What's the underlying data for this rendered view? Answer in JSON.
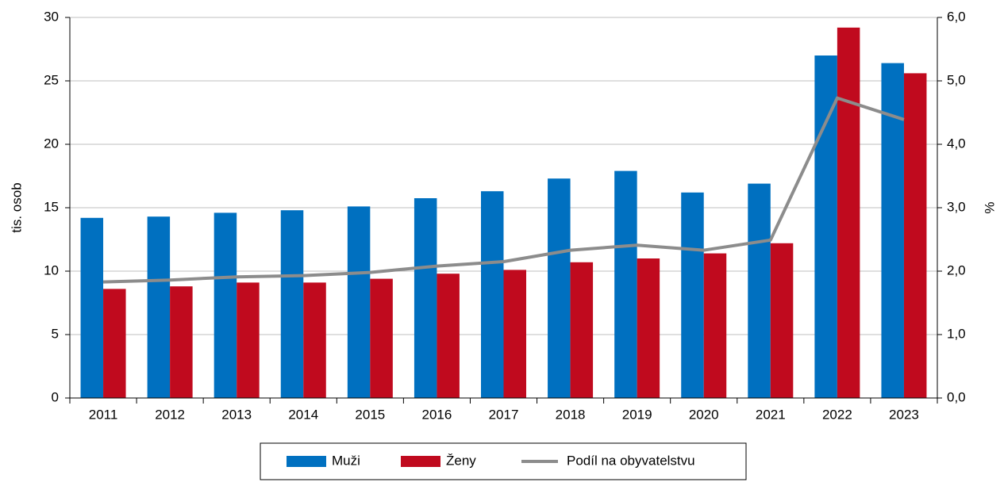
{
  "chart_data": {
    "type": "bar",
    "y_label": "tis. osob",
    "y2_label": "%",
    "categories": [
      "2011",
      "2012",
      "2013",
      "2014",
      "2015",
      "2016",
      "2017",
      "2018",
      "2019",
      "2020",
      "2021",
      "2022",
      "2023"
    ],
    "series": [
      {
        "name": "Muži",
        "color": "#0070c0",
        "values": [
          14.2,
          14.3,
          14.6,
          14.8,
          15.1,
          15.75,
          16.3,
          17.3,
          17.9,
          16.2,
          16.9,
          27.0,
          26.4
        ]
      },
      {
        "name": "Ženy",
        "color": "#c00a1e",
        "values": [
          8.6,
          8.8,
          9.1,
          9.1,
          9.4,
          9.8,
          10.1,
          10.7,
          11.0,
          11.4,
          12.2,
          29.2,
          25.6
        ]
      },
      {
        "name": "Podíl na obyvatelstvu",
        "color": "#8c8c8c",
        "type": "line",
        "axis": "y2",
        "values": [
          1.83,
          1.86,
          1.91,
          1.93,
          1.98,
          2.08,
          2.15,
          2.33,
          2.41,
          2.33,
          2.49,
          4.73,
          4.39
        ]
      }
    ],
    "ylim": [
      0,
      30
    ],
    "yticks": [
      0,
      5,
      10,
      15,
      20,
      25,
      30
    ],
    "y2lim": [
      0,
      6
    ],
    "y2ticks": [
      {
        "value": 0,
        "label": "0,0"
      },
      {
        "value": 1,
        "label": "1,0"
      },
      {
        "value": 2,
        "label": "2,0"
      },
      {
        "value": 3,
        "label": "3,0"
      },
      {
        "value": 4,
        "label": "4,0"
      },
      {
        "value": 5,
        "label": "5,0"
      },
      {
        "value": 6,
        "label": "6,0"
      }
    ],
    "grid": true,
    "legend": "bottom"
  }
}
